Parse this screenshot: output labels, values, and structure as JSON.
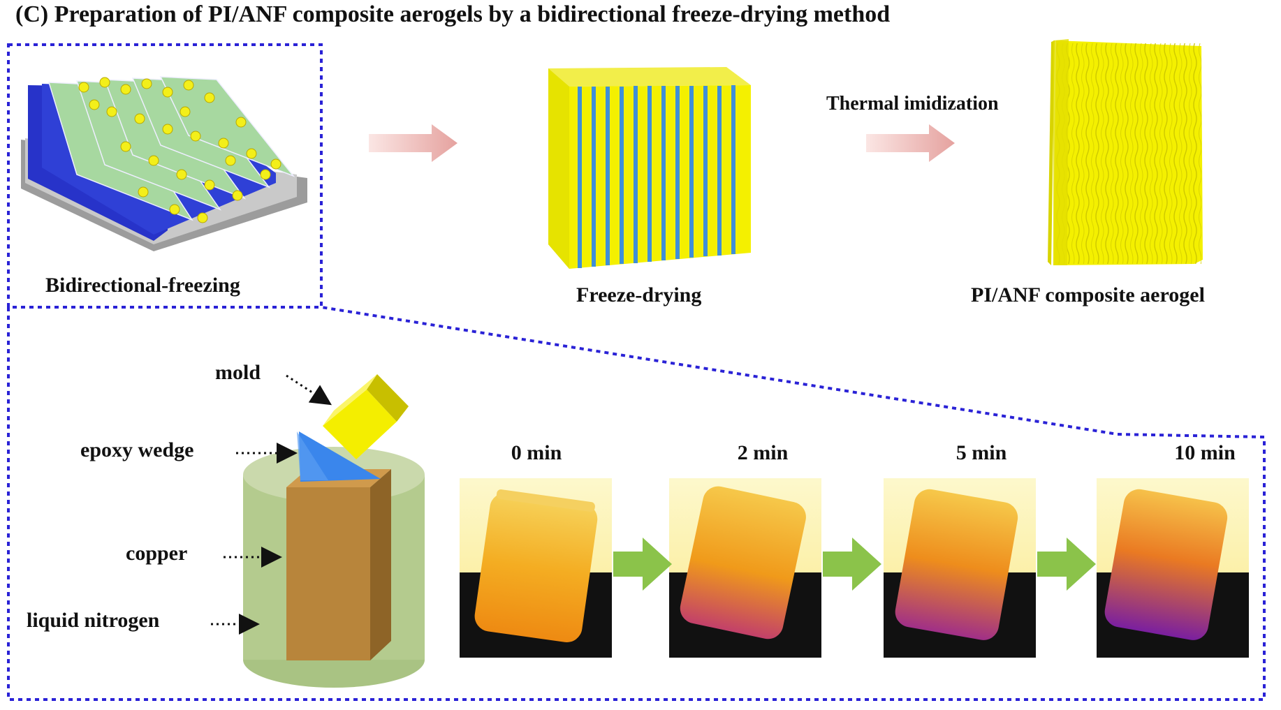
{
  "figure": {
    "title": "(C) Preparation of PI/ANF composite aerogels by a bidirectional freeze-drying method"
  },
  "top_row": {
    "stage1_label": "Bidirectional-freezing",
    "stage2_label": "Freeze-drying",
    "arrow2_label": "Thermal imidization",
    "stage3_label": "PI/ANF composite aerogel"
  },
  "setup": {
    "mold_label": "mold",
    "wedge_label": "epoxy wedge",
    "copper_label": "copper",
    "nitrogen_label": "liquid nitrogen"
  },
  "timeline": {
    "frames": [
      {
        "label": "0 min"
      },
      {
        "label": "2 min"
      },
      {
        "label": "5 min"
      },
      {
        "label": "10 min"
      }
    ]
  },
  "colors": {
    "frame_border": "#2a22d6",
    "pink_arrow": "#e8aaa8",
    "green_arrow": "#8bc34a",
    "yellow": "#f4f000",
    "blue": "#2d54c8",
    "copper": "#b8863e",
    "nitrogen": "#a8c27a"
  }
}
